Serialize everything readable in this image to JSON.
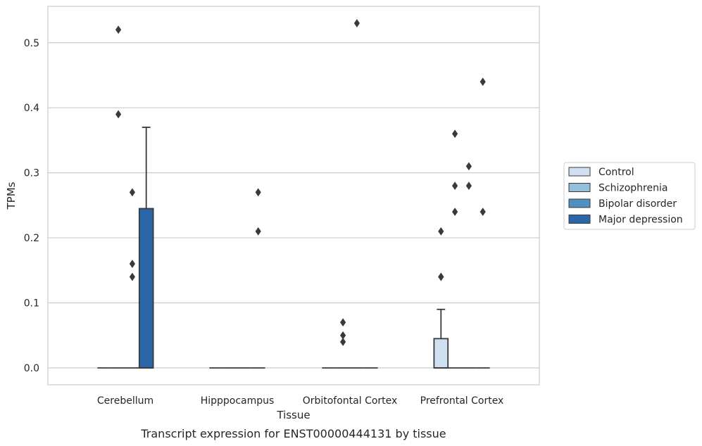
{
  "chart_data": {
    "type": "box",
    "title": "Transcript expression for ENST00000444131 by tissue",
    "xlabel": "Tissue",
    "ylabel": "TPMs",
    "ylim": [
      -0.026,
      0.556
    ],
    "yticks": [
      0.0,
      0.1,
      0.2,
      0.3,
      0.4,
      0.5
    ],
    "ytick_labels": [
      "0.0",
      "0.1",
      "0.2",
      "0.3",
      "0.4",
      "0.5"
    ],
    "grid": true,
    "legend_position": "right",
    "categories": [
      "Cerebellum",
      "Hipppocampus",
      "Orbitofontal Cortex",
      "Prefrontal Cortex"
    ],
    "series": [
      {
        "name": "Control",
        "color": "#cfe0f0",
        "boxes": [
          {
            "q1": 0,
            "median": 0,
            "q3": 0,
            "whisker_low": 0,
            "whisker_high": 0,
            "outliers": []
          },
          {
            "q1": 0,
            "median": 0,
            "q3": 0,
            "whisker_low": 0,
            "whisker_high": 0,
            "outliers": []
          },
          {
            "q1": 0,
            "median": 0,
            "q3": 0,
            "whisker_low": 0,
            "whisker_high": 0,
            "outliers": []
          },
          {
            "q1": 0,
            "median": 0,
            "q3": 0.045,
            "whisker_low": 0,
            "whisker_high": 0.09,
            "outliers": [
              0.14,
              0.14,
              0.21
            ]
          }
        ]
      },
      {
        "name": "Schizophrenia",
        "color": "#93bfdb",
        "boxes": [
          {
            "q1": 0,
            "median": 0,
            "q3": 0,
            "whisker_low": 0,
            "whisker_high": 0,
            "outliers": [
              0.52,
              0.39
            ]
          },
          {
            "q1": 0,
            "median": 0,
            "q3": 0,
            "whisker_low": 0,
            "whisker_high": 0,
            "outliers": []
          },
          {
            "q1": 0,
            "median": 0,
            "q3": 0,
            "whisker_low": 0,
            "whisker_high": 0,
            "outliers": [
              0.07,
              0.05,
              0.04
            ]
          },
          {
            "q1": 0,
            "median": 0,
            "q3": 0,
            "whisker_low": 0,
            "whisker_high": 0,
            "outliers": [
              0.24,
              0.28,
              0.36
            ]
          }
        ]
      },
      {
        "name": "Bipolar disorder",
        "color": "#5090c0",
        "boxes": [
          {
            "q1": 0,
            "median": 0,
            "q3": 0,
            "whisker_low": 0,
            "whisker_high": 0,
            "outliers": [
              0.27,
              0.16,
              0.14
            ]
          },
          {
            "q1": 0,
            "median": 0,
            "q3": 0,
            "whisker_low": 0,
            "whisker_high": 0,
            "outliers": []
          },
          {
            "q1": 0,
            "median": 0,
            "q3": 0,
            "whisker_low": 0,
            "whisker_high": 0,
            "outliers": [
              0.53
            ]
          },
          {
            "q1": 0,
            "median": 0,
            "q3": 0,
            "whisker_low": 0,
            "whisker_high": 0,
            "outliers": [
              0.28,
              0.31
            ]
          }
        ]
      },
      {
        "name": "Major depression",
        "color": "#2a66a8",
        "boxes": [
          {
            "q1": 0,
            "median": 0,
            "q3": 0.245,
            "whisker_low": 0,
            "whisker_high": 0.37,
            "outliers": []
          },
          {
            "q1": 0,
            "median": 0,
            "q3": 0,
            "whisker_low": 0,
            "whisker_high": 0,
            "outliers": [
              0.27,
              0.21
            ]
          },
          {
            "q1": 0,
            "median": 0,
            "q3": 0,
            "whisker_low": 0,
            "whisker_high": 0,
            "outliers": []
          },
          {
            "q1": 0,
            "median": 0,
            "q3": 0,
            "whisker_low": 0,
            "whisker_high": 0,
            "outliers": [
              0.44,
              0.24
            ]
          }
        ]
      }
    ]
  }
}
